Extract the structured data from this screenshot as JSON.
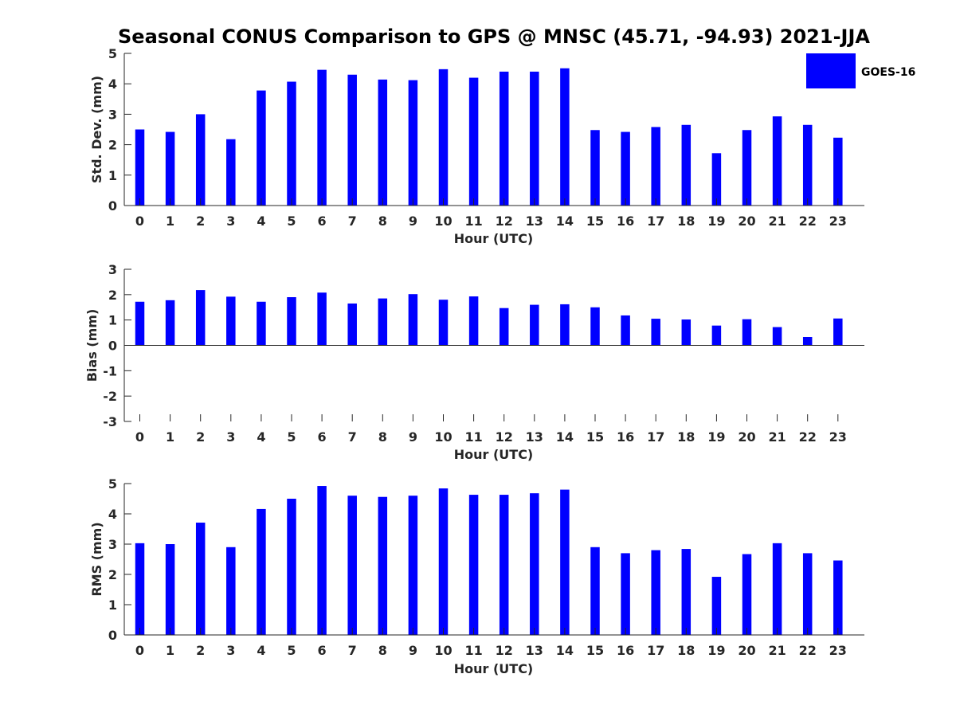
{
  "title": "Seasonal CONUS Comparison to GPS @ MNSC (45.71, -94.93) 2021-JJA",
  "legend": {
    "label": "GOES-16",
    "color": "#0000ff",
    "placement": "top-right"
  },
  "bar_color": "#0000ff",
  "chart_data": [
    {
      "type": "bar",
      "xlabel": "Hour (UTC)",
      "ylabel": "Std. Dev. (mm)",
      "ylim": [
        0,
        5
      ],
      "yticks": [
        0,
        1,
        2,
        3,
        4,
        5
      ],
      "categories": [
        "0",
        "1",
        "2",
        "3",
        "4",
        "5",
        "6",
        "7",
        "8",
        "9",
        "10",
        "11",
        "12",
        "13",
        "14",
        "15",
        "16",
        "17",
        "18",
        "19",
        "20",
        "21",
        "22",
        "23"
      ],
      "series": [
        {
          "name": "GOES-16",
          "values": [
            2.5,
            2.42,
            3.0,
            2.18,
            3.78,
            4.07,
            4.46,
            4.3,
            4.14,
            4.12,
            4.48,
            4.2,
            4.4,
            4.4,
            4.51,
            2.48,
            2.42,
            2.58,
            2.65,
            1.72,
            2.48,
            2.93,
            2.65,
            2.23
          ]
        }
      ],
      "grid": false
    },
    {
      "type": "bar",
      "xlabel": "Hour (UTC)",
      "ylabel": "Bias (mm)",
      "ylim": [
        -3,
        3
      ],
      "yticks": [
        -3,
        -2,
        -1,
        0,
        1,
        2,
        3
      ],
      "categories": [
        "0",
        "1",
        "2",
        "3",
        "4",
        "5",
        "6",
        "7",
        "8",
        "9",
        "10",
        "11",
        "12",
        "13",
        "14",
        "15",
        "16",
        "17",
        "18",
        "19",
        "20",
        "21",
        "22",
        "23"
      ],
      "series": [
        {
          "name": "GOES-16",
          "values": [
            1.72,
            1.78,
            2.18,
            1.92,
            1.72,
            1.9,
            2.08,
            1.65,
            1.85,
            2.02,
            1.8,
            1.93,
            1.47,
            1.6,
            1.62,
            1.5,
            1.18,
            1.05,
            1.02,
            0.78,
            1.03,
            0.72,
            0.33,
            1.06
          ]
        }
      ],
      "grid": false
    },
    {
      "type": "bar",
      "xlabel": "Hour (UTC)",
      "ylabel": "RMS (mm)",
      "ylim": [
        0,
        5
      ],
      "yticks": [
        0,
        1,
        2,
        3,
        4,
        5
      ],
      "categories": [
        "0",
        "1",
        "2",
        "3",
        "4",
        "5",
        "6",
        "7",
        "8",
        "9",
        "10",
        "11",
        "12",
        "13",
        "14",
        "15",
        "16",
        "17",
        "18",
        "19",
        "20",
        "21",
        "22",
        "23"
      ],
      "series": [
        {
          "name": "GOES-16",
          "values": [
            3.03,
            3.0,
            3.71,
            2.9,
            4.16,
            4.5,
            4.92,
            4.6,
            4.56,
            4.6,
            4.84,
            4.63,
            4.63,
            4.68,
            4.8,
            2.9,
            2.7,
            2.8,
            2.84,
            1.92,
            2.67,
            3.03,
            2.7,
            2.46
          ]
        }
      ],
      "grid": false
    }
  ]
}
